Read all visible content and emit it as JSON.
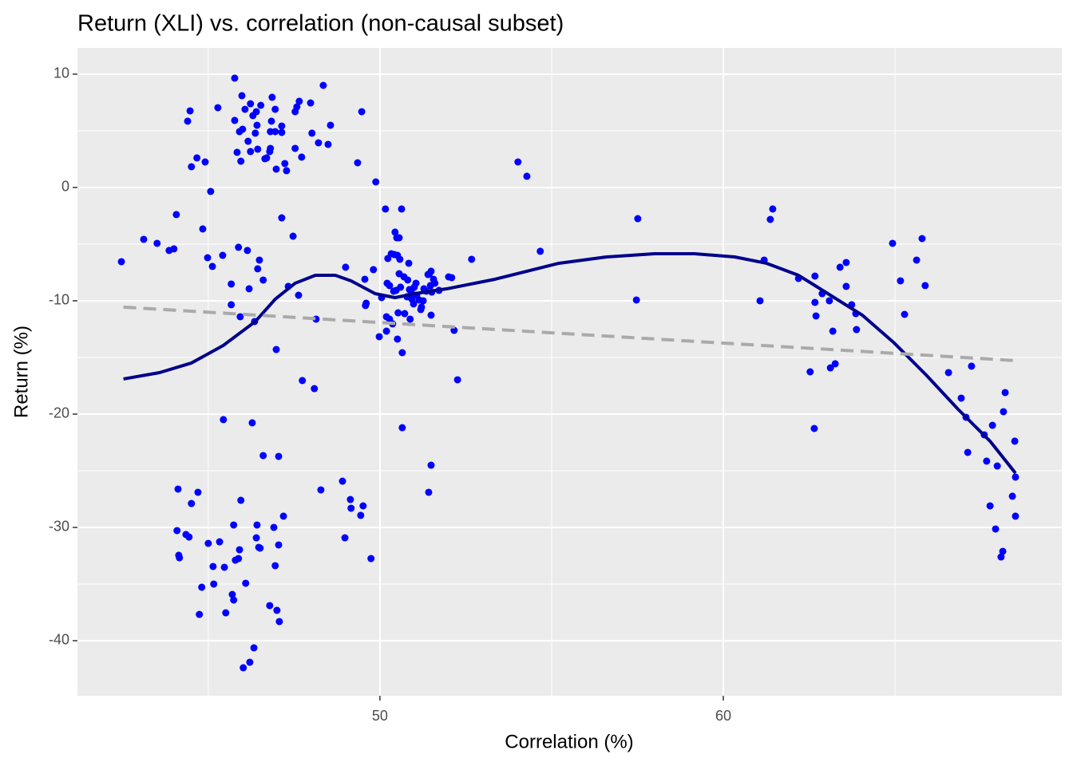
{
  "chart_data": {
    "type": "scatter",
    "title": "Return (XLI) vs. correlation (non-causal subset)",
    "x_label": "Correlation (%)",
    "y_label": "Return (%)",
    "xlim": [
      41.19,
      69.86
    ],
    "ylim": [
      -44.86,
      12.32
    ],
    "xticks": [
      50,
      60
    ],
    "yticks": [
      10,
      0,
      -10,
      -20,
      -30,
      -40
    ],
    "minor_xticks": [
      45,
      55,
      65
    ],
    "minor_yticks": [
      5,
      -5,
      -15,
      -25,
      -35
    ],
    "grid": true,
    "series": [
      {
        "kind": "points",
        "color": "#0000ff",
        "x": [
          42.47,
          43.12,
          43.51,
          43.86,
          44.0,
          44.07,
          44.09,
          44.12,
          44.16,
          44.14,
          44.35,
          44.44,
          44.51,
          44.4,
          44.47,
          44.51,
          44.67,
          44.7,
          44.74,
          44.81,
          44.84,
          44.91,
          44.98,
          45.0,
          45.07,
          45.12,
          45.14,
          45.16,
          45.28,
          45.33,
          45.42,
          45.44,
          45.47,
          45.51,
          45.67,
          45.67,
          45.7,
          45.74,
          45.77,
          45.77,
          45.74,
          45.79,
          45.84,
          45.88,
          45.88,
          45.91,
          45.91,
          45.93,
          45.95,
          45.95,
          46.0,
          45.98,
          46.02,
          46.07,
          46.09,
          46.14,
          46.16,
          46.19,
          46.21,
          46.23,
          46.23,
          46.28,
          46.3,
          46.33,
          46.35,
          46.37,
          46.4,
          46.4,
          46.42,
          46.42,
          46.44,
          46.44,
          46.47,
          46.49,
          46.51,
          46.53,
          46.6,
          46.6,
          46.65,
          46.7,
          46.79,
          46.81,
          46.81,
          46.79,
          46.84,
          46.86,
          46.91,
          46.95,
          46.95,
          46.95,
          46.98,
          46.98,
          47.0,
          47.05,
          47.05,
          47.07,
          47.14,
          47.14,
          47.14,
          47.19,
          47.23,
          47.28,
          47.33,
          47.47,
          47.53,
          47.53,
          47.58,
          47.63,
          47.65,
          47.72,
          47.74,
          47.98,
          48.02,
          48.09,
          48.14,
          48.21,
          48.28,
          48.35,
          48.49,
          48.56,
          48.91,
          48.98,
          49.0,
          49.14,
          49.16,
          49.35,
          49.44,
          49.47,
          49.51,
          49.56,
          49.58,
          49.6,
          49.74,
          49.81,
          49.88,
          49.98,
          50.05,
          50.16,
          50.19,
          50.19,
          50.21,
          50.23,
          50.28,
          50.28,
          50.33,
          50.37,
          50.4,
          50.42,
          50.44,
          50.47,
          50.49,
          50.51,
          50.51,
          50.53,
          50.56,
          50.56,
          50.58,
          50.6,
          50.63,
          50.65,
          50.65,
          50.7,
          50.72,
          50.79,
          50.81,
          50.84,
          50.86,
          50.88,
          50.91,
          50.93,
          50.98,
          51.0,
          51.05,
          51.07,
          51.14,
          51.19,
          51.21,
          51.26,
          51.28,
          51.35,
          51.4,
          51.42,
          51.44,
          51.47,
          51.49,
          51.49,
          51.49,
          51.51,
          51.56,
          51.6,
          51.72,
          52.0,
          52.09,
          52.16,
          52.26,
          52.67,
          54.02,
          54.28,
          54.67,
          57.47,
          57.51,
          61.07,
          61.19,
          61.37,
          61.44,
          62.19,
          62.53,
          62.65,
          62.67,
          62.67,
          62.7,
          62.88,
          63.09,
          63.12,
          63.19,
          63.26,
          63.4,
          63.58,
          63.58,
          63.74,
          63.86,
          63.88,
          64.93,
          65.16,
          65.28,
          65.63,
          65.79,
          65.88,
          66.56,
          66.93,
          67.07,
          67.12,
          67.23,
          67.6,
          67.67,
          67.77,
          67.84,
          67.93,
          67.98,
          68.09,
          68.14,
          68.16,
          68.21,
          68.42,
          68.49,
          68.51,
          68.51
        ],
        "values": [
          -6.55,
          -4.58,
          -4.93,
          -5.56,
          -5.42,
          -2.39,
          -30.28,
          -26.62,
          -32.68,
          -32.46,
          -30.63,
          -30.85,
          -27.89,
          5.85,
          6.76,
          1.83,
          2.61,
          -26.9,
          -37.68,
          -35.28,
          -3.66,
          2.25,
          -6.2,
          -31.41,
          -0.35,
          -6.97,
          -33.45,
          -35.0,
          7.04,
          -31.27,
          -5.99,
          -20.49,
          -33.52,
          -37.54,
          -8.52,
          -10.35,
          -35.92,
          -29.79,
          9.65,
          5.92,
          -36.41,
          -32.89,
          3.1,
          -32.75,
          -5.28,
          4.93,
          -31.97,
          -11.41,
          -27.61,
          2.32,
          5.14,
          8.1,
          -42.39,
          6.9,
          -34.93,
          -5.56,
          4.08,
          -8.94,
          -41.9,
          7.39,
          3.17,
          -20.77,
          6.34,
          -40.63,
          -11.83,
          4.79,
          6.69,
          -30.92,
          -29.79,
          5.49,
          3.38,
          -7.18,
          -31.76,
          -6.41,
          -31.83,
          7.25,
          -8.17,
          -23.66,
          2.54,
          2.61,
          3.17,
          4.93,
          3.45,
          -36.9,
          5.85,
          7.96,
          -30.0,
          6.9,
          -33.38,
          4.93,
          1.62,
          -14.3,
          -37.32,
          -23.73,
          -31.55,
          -38.31,
          5.42,
          4.86,
          -2.68,
          -29.01,
          2.11,
          1.48,
          -8.73,
          -4.3,
          3.45,
          6.69,
          7.11,
          -9.51,
          7.61,
          2.68,
          -17.04,
          7.46,
          4.79,
          -17.75,
          -11.62,
          3.94,
          -26.69,
          9.01,
          3.8,
          5.49,
          -25.92,
          -30.92,
          -7.04,
          -27.54,
          -28.31,
          2.18,
          -28.94,
          6.69,
          -28.1,
          -8.1,
          -10.42,
          -10.21,
          -32.75,
          -7.25,
          0.49,
          -13.17,
          -9.72,
          -1.9,
          -11.41,
          -12.68,
          -8.45,
          -6.27,
          -11.62,
          -8.66,
          -5.85,
          -12.04,
          -9.15,
          -5.92,
          -3.94,
          -9.08,
          -4.44,
          -5.99,
          -13.38,
          -11.06,
          -7.61,
          -4.44,
          -6.34,
          -8.8,
          -1.9,
          -14.58,
          -21.2,
          -7.89,
          -11.13,
          -9.65,
          -8.17,
          -6.69,
          -9.01,
          -11.62,
          -9.23,
          -9.86,
          -10.28,
          -8.8,
          -8.45,
          -9.51,
          -9.93,
          -10.77,
          -10.56,
          -10.0,
          -8.94,
          -9.15,
          -7.68,
          -26.9,
          -7.61,
          -8.66,
          -24.51,
          -7.39,
          -11.27,
          -9.23,
          -8.1,
          -8.45,
          -9.08,
          -7.89,
          -7.96,
          -12.61,
          -16.97,
          -6.34,
          2.25,
          0.99,
          -5.63,
          -9.93,
          -2.75,
          -10.0,
          -6.41,
          -2.82,
          -1.9,
          -8.03,
          -16.27,
          -21.27,
          -7.82,
          -10.14,
          -11.34,
          -9.37,
          -10.0,
          -15.92,
          -12.68,
          -15.56,
          -7.04,
          -6.62,
          -8.73,
          -10.35,
          -11.13,
          -12.54,
          -4.93,
          -8.24,
          -11.2,
          -6.41,
          -4.51,
          -8.66,
          -16.34,
          -18.59,
          -20.28,
          -23.38,
          -15.77,
          -21.83,
          -24.15,
          -28.1,
          -20.99,
          -30.14,
          -24.58,
          -32.61,
          -32.11,
          -19.79,
          -18.1,
          -27.25,
          -22.39,
          -29.01,
          -25.56
        ]
      },
      {
        "kind": "line",
        "color": "#00008b",
        "dashed": false,
        "x": [
          42.53,
          43.58,
          44.51,
          45.44,
          46.37,
          46.95,
          47.53,
          48.12,
          48.7,
          49.16,
          49.86,
          50.44,
          51.02,
          51.95,
          53.35,
          55.21,
          56.6,
          58.0,
          59.16,
          60.33,
          61.26,
          62.19,
          63.12,
          64.05,
          64.98,
          65.91,
          66.84,
          67.77,
          68.51
        ],
        "values": [
          -16.9,
          -16.34,
          -15.49,
          -13.94,
          -11.83,
          -9.86,
          -8.45,
          -7.75,
          -7.75,
          -8.24,
          -9.37,
          -9.72,
          -9.37,
          -8.94,
          -8.1,
          -6.69,
          -6.13,
          -5.85,
          -5.85,
          -6.13,
          -6.69,
          -7.75,
          -9.51,
          -11.27,
          -13.73,
          -16.55,
          -19.58,
          -22.39,
          -25.21
        ]
      },
      {
        "kind": "line",
        "color": "#aaaaaa",
        "dashed": true,
        "x": [
          42.53,
          68.51
        ],
        "values": [
          -10.56,
          -15.28
        ]
      }
    ]
  }
}
